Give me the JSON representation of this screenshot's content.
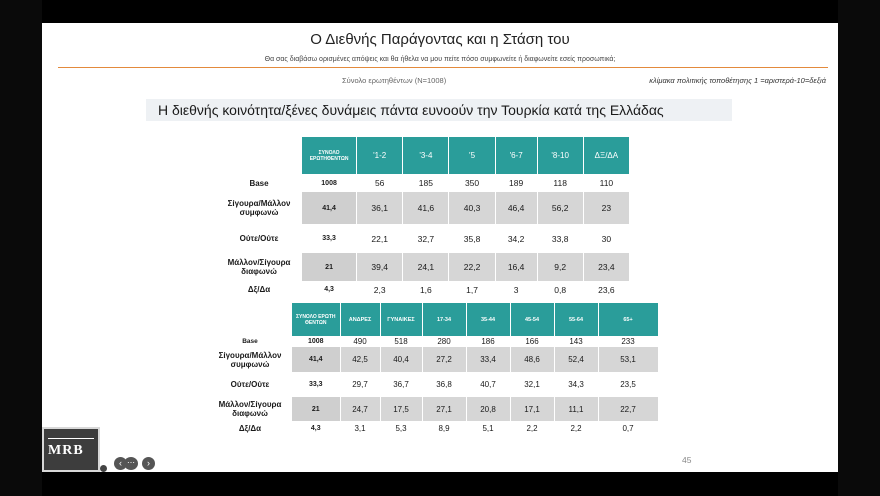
{
  "slide": {
    "title": "Ο Διεθνής Παράγοντας και η Στάση του",
    "subtitle": "Θα σας διαβάσω ορισμένες απόψεις και θα ήθελα να μου πείτε πόσο συμφωνείτε ή διαφωνείτε εσείς προσωπικά;",
    "total_label": "Σύνολο ερωτηθέντων (N=1008)",
    "scale_note": "κλίμακα πολιτικής τοποθέτησης 1 =αριστερά-10=δεξιά",
    "question": "Η διεθνής κοινότητα/ξένες δυνάμεις πάντα ευνοούν την Τουρκία κατά της Ελλάδας",
    "page_number": "45",
    "logo_text": "MRB",
    "accent_color": "#2a9d9a",
    "line_color": "#e38a3c"
  },
  "table1": {
    "headers": [
      "ΣΥΝΟΛΟ ΕΡΩΤΗΘΕΝΤΩΝ",
      "'1-2",
      "'3-4",
      "'5",
      "'6-7",
      "'8-10",
      "ΔΞ/ΔΑ"
    ],
    "rows": [
      {
        "label": "Base",
        "values": [
          "1008",
          "56",
          "185",
          "350",
          "189",
          "118",
          "110"
        ]
      },
      {
        "label": "Σίγουρα/Μάλλον συμφωνώ",
        "values": [
          "41,4",
          "36,1",
          "41,6",
          "40,3",
          "46,4",
          "56,2",
          "23"
        ]
      },
      {
        "label": "Ούτε/Ούτε",
        "values": [
          "33,3",
          "22,1",
          "32,7",
          "35,8",
          "34,2",
          "33,8",
          "30"
        ]
      },
      {
        "label": "Μάλλον/Σίγουρα διαφωνώ",
        "values": [
          "21",
          "39,4",
          "24,1",
          "22,2",
          "16,4",
          "9,2",
          "23,4"
        ]
      },
      {
        "label": "Δξ/Δα",
        "values": [
          "4,3",
          "2,3",
          "1,6",
          "1,7",
          "3",
          "0,8",
          "23,6"
        ]
      }
    ]
  },
  "table2": {
    "headers": [
      "ΣΥΝΟΛΟ ΕΡΩΤΗ ΘΕΝΤΩΝ",
      "ΑΝΔΡΕΣ",
      "ΓΥΝΑΙΚΕΣ",
      "17-34",
      "35-44",
      "45-54",
      "55-64",
      "65+"
    ],
    "rows": [
      {
        "label": "Base",
        "values": [
          "1008",
          "490",
          "518",
          "280",
          "186",
          "166",
          "143",
          "233"
        ]
      },
      {
        "label": "Σίγουρα/Μάλλον συμφωνώ",
        "values": [
          "41,4",
          "42,5",
          "40,4",
          "27,2",
          "33,4",
          "48,6",
          "52,4",
          "53,1"
        ]
      },
      {
        "label": "Ούτε/Ούτε",
        "values": [
          "33,3",
          "29,7",
          "36,7",
          "36,8",
          "40,7",
          "32,1",
          "34,3",
          "23,5"
        ]
      },
      {
        "label": "Μάλλον/Σίγουρα διαφωνώ",
        "values": [
          "21",
          "24,7",
          "17,5",
          "27,1",
          "20,8",
          "17,1",
          "11,1",
          "22,7"
        ]
      },
      {
        "label": "Δξ/Δα",
        "values": [
          "4,3",
          "3,1",
          "5,3",
          "8,9",
          "5,1",
          "2,2",
          "2,2",
          "0,7"
        ]
      }
    ]
  }
}
